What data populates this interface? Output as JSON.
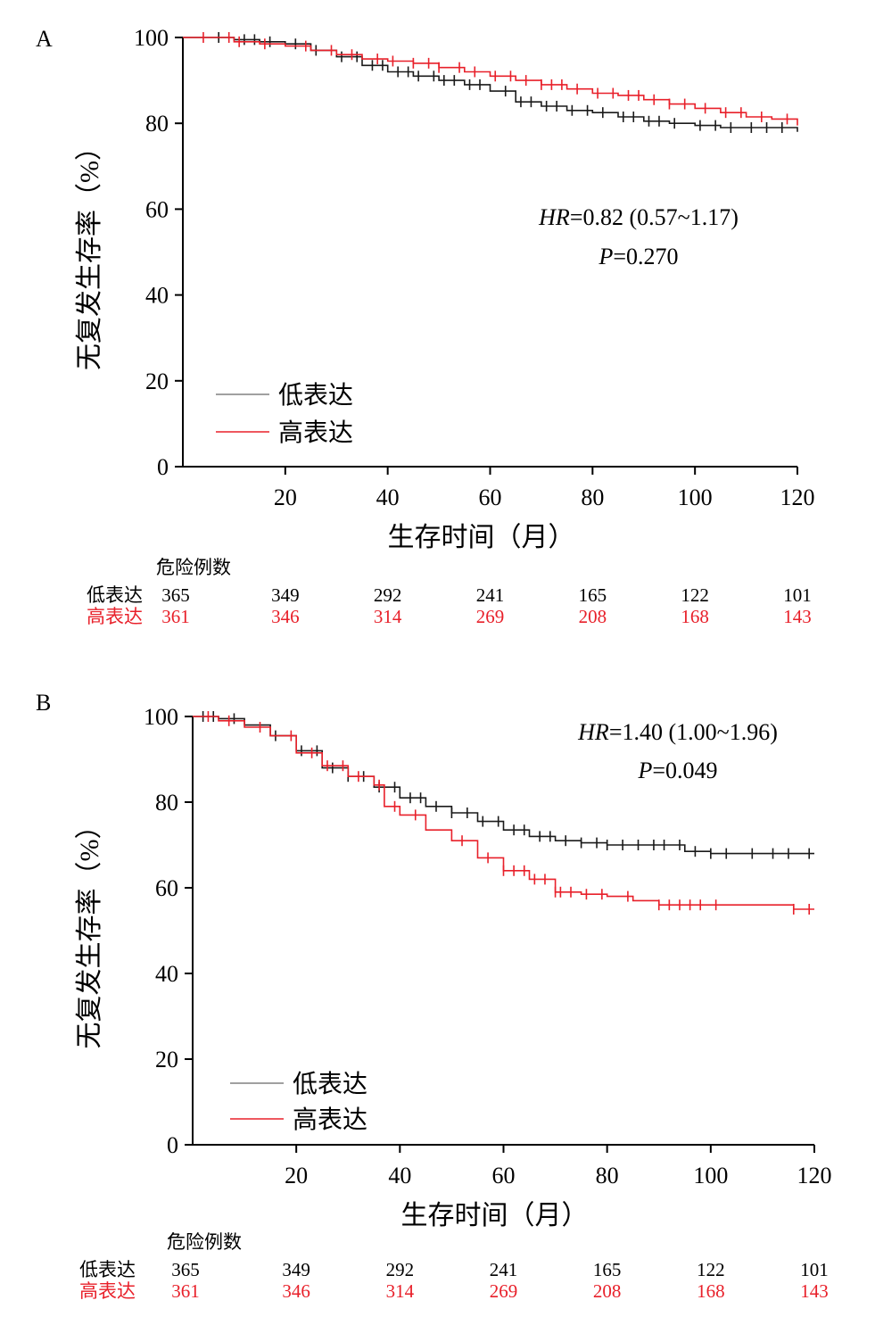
{
  "colors": {
    "low": "#1a1a1a",
    "high": "#e8202a",
    "axis": "#000000",
    "legend_low": "#808080"
  },
  "chart_data": [
    {
      "panel_label": "A",
      "type": "line",
      "subtype": "kaplan-meier",
      "xlabel": "生存时间（月）",
      "ylabel": "无复发生存率（%）",
      "xlim": [
        0,
        120
      ],
      "ylim": [
        0,
        100
      ],
      "xticks": [
        20,
        40,
        60,
        80,
        100,
        120
      ],
      "yticks": [
        0,
        20,
        40,
        60,
        80,
        100
      ],
      "hr_prefix": "HR",
      "hr_value": "=0.82 (0.57~1.17)",
      "p_prefix": "P",
      "p_value": "=0.270",
      "legend": [
        "低表达",
        "高表达"
      ],
      "risk_table": {
        "title": "危险例数",
        "times": [
          0,
          20,
          40,
          60,
          80,
          100,
          120
        ],
        "rows": [
          {
            "label": "低表达",
            "values": [
              "365",
              "349",
              "292",
              "241",
              "165",
              "122",
              "101"
            ]
          },
          {
            "label": "高表达",
            "values": [
              "361",
              "346",
              "314",
              "269",
              "208",
              "168",
              "143"
            ]
          }
        ]
      },
      "series": [
        {
          "name": "低表达",
          "x": [
            0,
            5,
            10,
            15,
            20,
            25,
            30,
            35,
            40,
            45,
            50,
            55,
            60,
            65,
            70,
            75,
            80,
            85,
            90,
            95,
            100,
            105,
            110,
            115,
            120
          ],
          "y": [
            100,
            100,
            99.5,
            99,
            98.5,
            97,
            95.5,
            93.5,
            92,
            91,
            90,
            89,
            87.5,
            85,
            84,
            83,
            82.5,
            81.5,
            80.5,
            80,
            79.5,
            79,
            79,
            79,
            78
          ],
          "censor_x": [
            7,
            12,
            14,
            17,
            22,
            26,
            31,
            34,
            37,
            39,
            42,
            44,
            46,
            49,
            51,
            53,
            56,
            58,
            63,
            66,
            68,
            71,
            73,
            76,
            79,
            82,
            86,
            88,
            91,
            93,
            96,
            101,
            104,
            107,
            111,
            114,
            117
          ]
        },
        {
          "name": "高表达",
          "x": [
            0,
            5,
            10,
            15,
            20,
            25,
            30,
            35,
            40,
            45,
            50,
            55,
            60,
            65,
            70,
            75,
            80,
            85,
            90,
            95,
            100,
            105,
            110,
            115,
            120
          ],
          "y": [
            100,
            100,
            99,
            98.5,
            98,
            97,
            96,
            95,
            94.5,
            94,
            93,
            92,
            91,
            90,
            89,
            88,
            87,
            86.5,
            85.5,
            84.5,
            83.5,
            82.5,
            81.5,
            81,
            79.5
          ],
          "censor_x": [
            4,
            9,
            11,
            16,
            24,
            29,
            33,
            38,
            41,
            45,
            48,
            50,
            54,
            57,
            61,
            64,
            67,
            70,
            72,
            74,
            77,
            81,
            84,
            87,
            89,
            92,
            95,
            98,
            102,
            106,
            109,
            113,
            118
          ]
        }
      ]
    },
    {
      "panel_label": "B",
      "type": "line",
      "subtype": "kaplan-meier",
      "xlabel": "生存时间（月）",
      "ylabel": "无复发生存率（%）",
      "xlim": [
        0,
        120
      ],
      "ylim": [
        0,
        100
      ],
      "xticks": [
        20,
        40,
        60,
        80,
        100,
        120
      ],
      "yticks": [
        0,
        20,
        40,
        60,
        80,
        100
      ],
      "hr_prefix": "HR",
      "hr_value": "=1.40 (1.00~1.96)",
      "p_prefix": "P",
      "p_value": "=0.049",
      "legend": [
        "低表达",
        "高表达"
      ],
      "risk_table": {
        "title": "危险例数",
        "times": [
          0,
          20,
          40,
          60,
          80,
          100,
          120
        ],
        "rows": [
          {
            "label": "低表达",
            "values": [
              "365",
              "349",
              "292",
              "241",
              "165",
              "122",
              "101"
            ]
          },
          {
            "label": "高表达",
            "values": [
              "361",
              "346",
              "314",
              "269",
              "208",
              "168",
              "143"
            ]
          }
        ]
      },
      "series": [
        {
          "name": "低表达",
          "x": [
            0,
            5,
            10,
            15,
            20,
            25,
            30,
            35,
            40,
            45,
            50,
            55,
            60,
            65,
            70,
            75,
            80,
            85,
            90,
            95,
            100,
            105,
            110,
            115,
            120
          ],
          "y": [
            100,
            99.5,
            98,
            95.5,
            92,
            88,
            86,
            83.5,
            81,
            79,
            77.5,
            75.5,
            73.5,
            72,
            71,
            70.5,
            70,
            70,
            70,
            68.5,
            68,
            68,
            68,
            68,
            68
          ],
          "censor_x": [
            2,
            4,
            8,
            16,
            21,
            24,
            27,
            30,
            33,
            36,
            39,
            42,
            44,
            47,
            50,
            53,
            56,
            59,
            62,
            64,
            67,
            69,
            72,
            75,
            78,
            80,
            83,
            86,
            89,
            91,
            94,
            97,
            100,
            103,
            108,
            112,
            115,
            119
          ]
        },
        {
          "name": "高表达",
          "x": [
            0,
            5,
            10,
            15,
            20,
            25,
            30,
            35,
            37,
            40,
            45,
            50,
            55,
            60,
            65,
            70,
            75,
            80,
            85,
            90,
            95,
            100,
            105,
            110,
            115,
            116,
            120
          ],
          "y": [
            100,
            99,
            97.5,
            95.5,
            91.5,
            88.5,
            86,
            84,
            79,
            77,
            73.5,
            71,
            67,
            64,
            62,
            59,
            58.5,
            58,
            57,
            56,
            56,
            56,
            56,
            56,
            56,
            55,
            55
          ],
          "censor_x": [
            3,
            7,
            13,
            19,
            23,
            26,
            29,
            32,
            36,
            39,
            43,
            52,
            57,
            60,
            62,
            64,
            66,
            68,
            70,
            71,
            73,
            76,
            79,
            84,
            90,
            92,
            94,
            96,
            98,
            101,
            116,
            119
          ]
        }
      ]
    }
  ]
}
